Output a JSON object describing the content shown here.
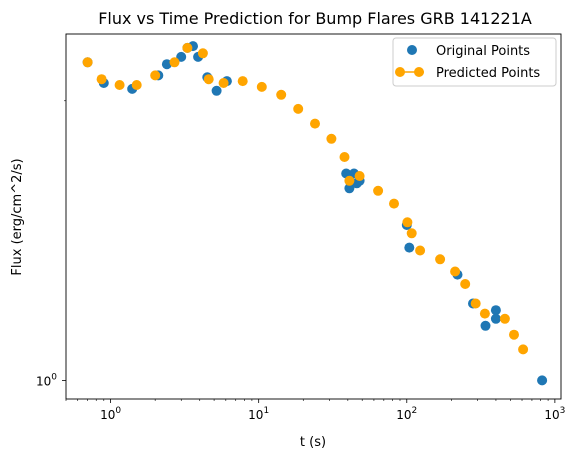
{
  "chart_data": {
    "type": "scatter",
    "title": "Flux vs Time Prediction for Bump Flares GRB 141221A",
    "xlabel": "t (s)",
    "ylabel": "Flux (erg/cm^2/s)",
    "xscale": "log",
    "yscale": "log",
    "xlim": [
      0.5,
      1100
    ],
    "ylim": [
      0.955,
      2.36
    ],
    "x_ticks": [
      {
        "value": 1,
        "base": "10",
        "exp": "0"
      },
      {
        "value": 10,
        "base": "10",
        "exp": "1"
      },
      {
        "value": 100,
        "base": "10",
        "exp": "2"
      },
      {
        "value": 1000,
        "base": "10",
        "exp": "3"
      }
    ],
    "y_ticks": [
      {
        "value": 1,
        "base": "10",
        "exp": "0"
      }
    ],
    "grid": false,
    "legend_position": "top-right",
    "series": [
      {
        "name": "Original Points",
        "color": "#1f77b4",
        "points": [
          {
            "x": 0.7,
            "y": 2.2
          },
          {
            "x": 0.9,
            "y": 2.09
          },
          {
            "x": 1.4,
            "y": 2.06
          },
          {
            "x": 2.1,
            "y": 2.13
          },
          {
            "x": 2.4,
            "y": 2.19
          },
          {
            "x": 3.0,
            "y": 2.23
          },
          {
            "x": 3.3,
            "y": 2.28
          },
          {
            "x": 3.6,
            "y": 2.29
          },
          {
            "x": 3.9,
            "y": 2.23
          },
          {
            "x": 4.5,
            "y": 2.12
          },
          {
            "x": 5.2,
            "y": 2.05
          },
          {
            "x": 6.1,
            "y": 2.1
          },
          {
            "x": 39,
            "y": 1.67
          },
          {
            "x": 41,
            "y": 1.61
          },
          {
            "x": 44,
            "y": 1.67
          },
          {
            "x": 46,
            "y": 1.63
          },
          {
            "x": 48,
            "y": 1.64
          },
          {
            "x": 100,
            "y": 1.47
          },
          {
            "x": 104,
            "y": 1.39
          },
          {
            "x": 220,
            "y": 1.3
          },
          {
            "x": 280,
            "y": 1.21
          },
          {
            "x": 340,
            "y": 1.145
          },
          {
            "x": 400,
            "y": 1.19
          },
          {
            "x": 400,
            "y": 1.165
          },
          {
            "x": 820,
            "y": 1.0
          }
        ]
      },
      {
        "name": "Predicted Points",
        "color": "#ffa500",
        "points": [
          {
            "x": 0.7,
            "y": 2.2
          },
          {
            "x": 0.87,
            "y": 2.11
          },
          {
            "x": 1.15,
            "y": 2.08
          },
          {
            "x": 1.5,
            "y": 2.08
          },
          {
            "x": 2.0,
            "y": 2.13
          },
          {
            "x": 2.7,
            "y": 2.2
          },
          {
            "x": 3.3,
            "y": 2.28
          },
          {
            "x": 4.2,
            "y": 2.25
          },
          {
            "x": 4.6,
            "y": 2.11
          },
          {
            "x": 5.8,
            "y": 2.09
          },
          {
            "x": 7.8,
            "y": 2.1
          },
          {
            "x": 10.5,
            "y": 2.07
          },
          {
            "x": 14.2,
            "y": 2.03
          },
          {
            "x": 18.5,
            "y": 1.96
          },
          {
            "x": 24,
            "y": 1.89
          },
          {
            "x": 31,
            "y": 1.82
          },
          {
            "x": 38,
            "y": 1.74
          },
          {
            "x": 41,
            "y": 1.64
          },
          {
            "x": 48,
            "y": 1.66
          },
          {
            "x": 64,
            "y": 1.6
          },
          {
            "x": 82,
            "y": 1.55
          },
          {
            "x": 101,
            "y": 1.48
          },
          {
            "x": 108,
            "y": 1.44
          },
          {
            "x": 123,
            "y": 1.38
          },
          {
            "x": 168,
            "y": 1.35
          },
          {
            "x": 212,
            "y": 1.31
          },
          {
            "x": 248,
            "y": 1.27
          },
          {
            "x": 292,
            "y": 1.21
          },
          {
            "x": 337,
            "y": 1.18
          },
          {
            "x": 460,
            "y": 1.165
          },
          {
            "x": 530,
            "y": 1.12
          },
          {
            "x": 610,
            "y": 1.08
          }
        ]
      }
    ]
  }
}
